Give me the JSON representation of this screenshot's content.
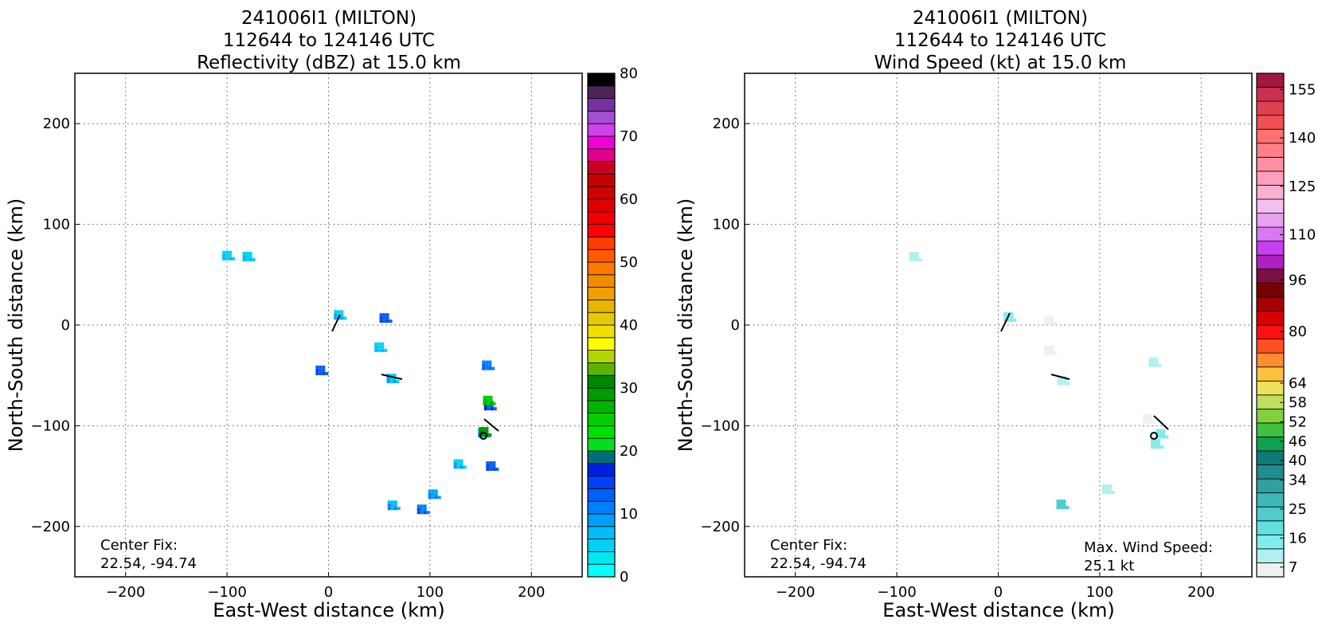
{
  "colors": {
    "frame": "#000000",
    "grid": "#555555",
    "background": "#ffffff"
  },
  "chart_data": [
    {
      "type": "heatmap",
      "title_lines": [
        "241006I1 (MILTON)",
        "112644 to 124146 UTC",
        "Reflectivity (dBZ) at 15.0 km"
      ],
      "xlabel": "East-West distance (km)",
      "ylabel": "North-South distance (km)",
      "xlim": [
        -250,
        250
      ],
      "ylim": [
        -250,
        250
      ],
      "xticks": [
        -200,
        -100,
        0,
        100,
        200
      ],
      "yticks": [
        -200,
        -100,
        0,
        100,
        200
      ],
      "grid": true,
      "annotations": {
        "center_fix_label": "Center Fix:",
        "center_fix_value": "22.54, -94.74"
      },
      "colorbar": {
        "min": 0,
        "max": 80,
        "tick_values": [
          0,
          10,
          20,
          30,
          40,
          50,
          60,
          70,
          80
        ],
        "tick_labels": [
          "0",
          "10",
          "20",
          "30",
          "40",
          "50",
          "60",
          "70",
          "80"
        ],
        "colors": [
          "#00ffff",
          "#00e8f0",
          "#00d2f5",
          "#00bcf7",
          "#00a0f7",
          "#0080f8",
          "#0060f8",
          "#0040f8",
          "#0020e0",
          "#006e7a",
          "#00e01c",
          "#00e000",
          "#00cc00",
          "#00b400",
          "#009c00",
          "#008600",
          "#5cb400",
          "#b0d800",
          "#ffff00",
          "#f0e000",
          "#e8c800",
          "#e8b400",
          "#f0a000",
          "#f08c00",
          "#ff7800",
          "#ff5a00",
          "#ff3c00",
          "#ff0000",
          "#f00000",
          "#e00000",
          "#d00000",
          "#c80000",
          "#c80020",
          "#e0008c",
          "#f000d8",
          "#d040e8",
          "#a050d0",
          "#7830a0",
          "#4c2458",
          "#000000"
        ]
      },
      "features": [
        {
          "type": "echo",
          "x": -100,
          "y": 69,
          "value": 4
        },
        {
          "type": "echo",
          "x": -80,
          "y": 68,
          "value": 4
        },
        {
          "type": "echo",
          "x": 10,
          "y": 10,
          "value": 5
        },
        {
          "type": "echo",
          "x": 55,
          "y": 7,
          "value": 12
        },
        {
          "type": "echo",
          "x": 50,
          "y": -22,
          "value": 4
        },
        {
          "type": "echo",
          "x": 62,
          "y": -53,
          "value": 5
        },
        {
          "type": "echo",
          "x": -8,
          "y": -45,
          "value": 12
        },
        {
          "type": "echo",
          "x": 156,
          "y": -40,
          "value": 10
        },
        {
          "type": "echo",
          "x": 158,
          "y": -80,
          "value": 13
        },
        {
          "type": "echo",
          "x": 157,
          "y": -75,
          "value": 24
        },
        {
          "type": "echo",
          "x": 152,
          "y": -107,
          "value": 6
        },
        {
          "type": "echo",
          "x": 153,
          "y": -106,
          "value": 28
        },
        {
          "type": "echo",
          "x": 160,
          "y": -140,
          "value": 12
        },
        {
          "type": "echo",
          "x": 128,
          "y": -138,
          "value": 5
        },
        {
          "type": "echo",
          "x": 103,
          "y": -168,
          "value": 8
        },
        {
          "type": "echo",
          "x": 92,
          "y": -183,
          "value": 11
        },
        {
          "type": "echo",
          "x": 63,
          "y": -179,
          "value": 7
        }
      ]
    },
    {
      "type": "heatmap",
      "title_lines": [
        "241006I1 (MILTON)",
        "112644 to 124146 UTC",
        "Wind Speed (kt) at 15.0 km"
      ],
      "xlabel": "East-West distance (km)",
      "ylabel": "North-South distance (km)",
      "xlim": [
        -250,
        250
      ],
      "ylim": [
        -250,
        250
      ],
      "xticks": [
        -200,
        -100,
        0,
        100,
        200
      ],
      "yticks": [
        -200,
        -100,
        0,
        100,
        200
      ],
      "grid": true,
      "annotations": {
        "center_fix_label": "Center Fix:",
        "center_fix_value": "22.54, -94.74",
        "max_wind_label": "Max. Wind Speed:",
        "max_wind_value": "25.1 kt"
      },
      "colorbar": {
        "min": 4,
        "max": 160,
        "tick_values": [
          7,
          16,
          25,
          34,
          40,
          46,
          52,
          58,
          64,
          80,
          96,
          110,
          125,
          140,
          155
        ],
        "tick_labels": [
          "7",
          "16",
          "25",
          "34",
          "40",
          "46",
          "52",
          "58",
          "64",
          "80",
          "96",
          "110",
          "125",
          "140",
          "155"
        ],
        "colors": [
          "#f0f0f0",
          "#b0f0f0",
          "#80ecec",
          "#60e0e0",
          "#50cccc",
          "#40b8b8",
          "#30a0a0",
          "#208c8c",
          "#107878",
          "#10a050",
          "#40c040",
          "#80d040",
          "#c0e060",
          "#f0e060",
          "#ffc040",
          "#ff8c30",
          "#ff5020",
          "#ff1010",
          "#d80000",
          "#a80000",
          "#780000",
          "#7a1040",
          "#b020c0",
          "#c840f0",
          "#d878f0",
          "#e8a0f0",
          "#f0c0f0",
          "#f8b0d0",
          "#ffa0c0",
          "#ff90a0",
          "#ff8088",
          "#ff7070",
          "#f05050",
          "#e04050",
          "#c83050",
          "#a01840"
        ]
      },
      "features": [
        {
          "type": "wind",
          "x": -83,
          "y": 68,
          "value": 12
        },
        {
          "type": "wind",
          "x": 10,
          "y": 8,
          "value": 14
        },
        {
          "type": "wind",
          "x": 50,
          "y": 5,
          "value": 6
        },
        {
          "type": "wind",
          "x": 50,
          "y": -25,
          "value": 6
        },
        {
          "type": "wind",
          "x": 63,
          "y": -55,
          "value": 12
        },
        {
          "type": "wind",
          "x": 153,
          "y": -37,
          "value": 12
        },
        {
          "type": "wind",
          "x": 147,
          "y": -93,
          "value": 6
        },
        {
          "type": "wind",
          "x": 160,
          "y": -108,
          "value": 14
        },
        {
          "type": "wind",
          "x": 155,
          "y": -118,
          "value": 16
        },
        {
          "type": "wind",
          "x": 107,
          "y": -163,
          "value": 10
        },
        {
          "type": "wind",
          "x": 62,
          "y": -178,
          "value": 22
        }
      ]
    }
  ]
}
